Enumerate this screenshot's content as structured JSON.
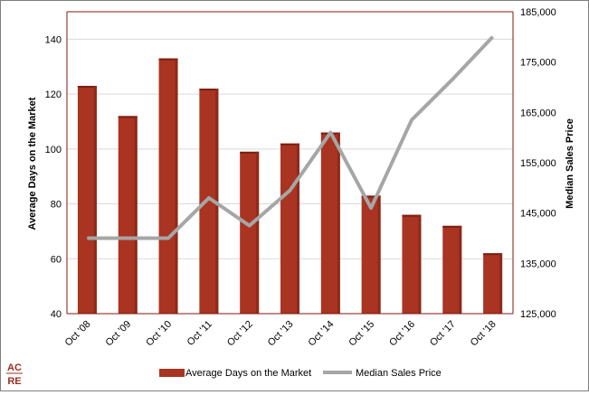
{
  "logo": {
    "line1": "AC",
    "line2": "RE",
    "color": "#9b2d20"
  },
  "chart_data": {
    "type": "bar",
    "categories": [
      "Oct '08",
      "Oct '09",
      "Oct '10",
      "Oct '11",
      "Oct '12",
      "Oct '13",
      "Oct '14",
      "Oct '15",
      "Oct '16",
      "Oct '17",
      "Oct '18"
    ],
    "series": [
      {
        "name": "Average Days on the Market",
        "type": "bar",
        "axis": "left",
        "color": "#a93421",
        "values": [
          123,
          112,
          133,
          122,
          99,
          102,
          106,
          83,
          76,
          72,
          62
        ]
      },
      {
        "name": "Median Sales Price",
        "type": "line",
        "axis": "right",
        "color": "#a6a6a6",
        "values": [
          140000,
          140000,
          140000,
          148000,
          142500,
          149500,
          161000,
          146000,
          163500,
          171500,
          180000
        ]
      }
    ],
    "ylabel": "Average Days on the Market",
    "ylabel_right": "Median Sales Price",
    "ylim": [
      40,
      150
    ],
    "yticks": [
      "40",
      "60",
      "80",
      "100",
      "120",
      "140"
    ],
    "ylim_right": [
      125000,
      185000
    ],
    "yticks_right": [
      "125,000",
      "135,000",
      "145,000",
      "155,000",
      "165,000",
      "175,000",
      "185,000"
    ],
    "grid": true,
    "legend": "bottom",
    "frame_color": "#7f1a10",
    "grid_color": "#d9d9d9"
  }
}
